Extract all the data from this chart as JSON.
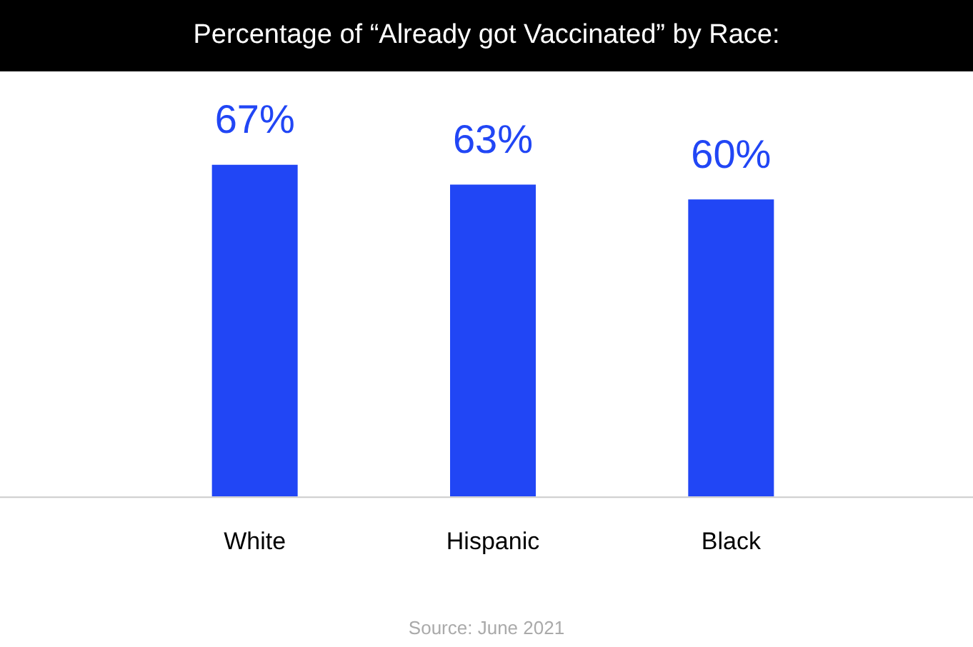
{
  "chart_data": {
    "type": "bar",
    "title": "Percentage of “Already got Vaccinated” by Race:",
    "categories": [
      "White",
      "Hispanic",
      "Black"
    ],
    "values": [
      67,
      63,
      60
    ],
    "color": "#2146f5",
    "value_labels": [
      "67%",
      "63%",
      "60%"
    ],
    "tick_labels": "x",
    "grid": false,
    "legend": false,
    "annotations": [
      "Source: June 2021"
    ]
  }
}
